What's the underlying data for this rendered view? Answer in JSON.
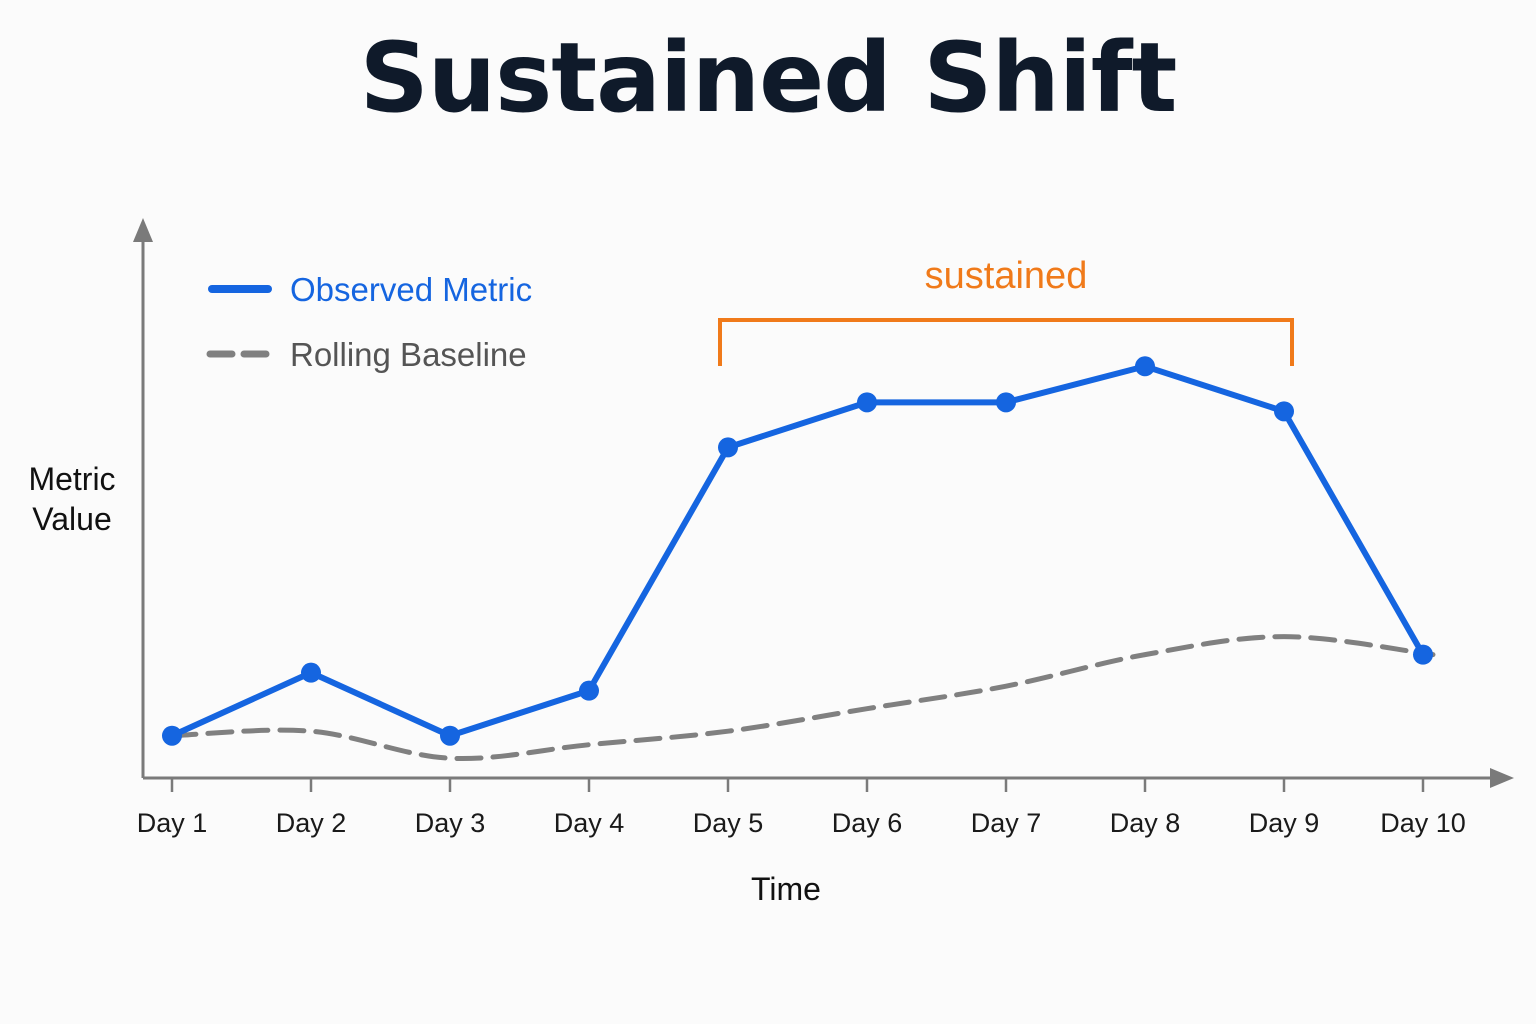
{
  "chart_data": {
    "type": "line",
    "title": "Sustained Shift",
    "xlabel": "Time",
    "ylabel": [
      "Metric",
      "Value"
    ],
    "categories": [
      "Day 1",
      "Day 2",
      "Day 3",
      "Day 4",
      "Day 5",
      "Day 6",
      "Day 7",
      "Day 8",
      "Day 9",
      "Day 10"
    ],
    "ylim": [
      0,
      100
    ],
    "grid": false,
    "legend_position": "top-left",
    "series": [
      {
        "name": "Observed Metric",
        "style": "solid-with-markers",
        "color": "#1565e0",
        "values": [
          29,
          36,
          29,
          34,
          61,
          66,
          66,
          70,
          65,
          38
        ]
      },
      {
        "name": "Rolling Baseline",
        "style": "dashed",
        "color": "#808080",
        "values": [
          29,
          29.5,
          26.5,
          28,
          29.5,
          32,
          34.5,
          38,
          40,
          38
        ]
      }
    ],
    "annotations": [
      {
        "label": "sustained",
        "type": "bracket",
        "from": "Day 5",
        "to": "Day 9",
        "color": "#f07a1a"
      }
    ],
    "axis_color": "#7a7a7a"
  }
}
